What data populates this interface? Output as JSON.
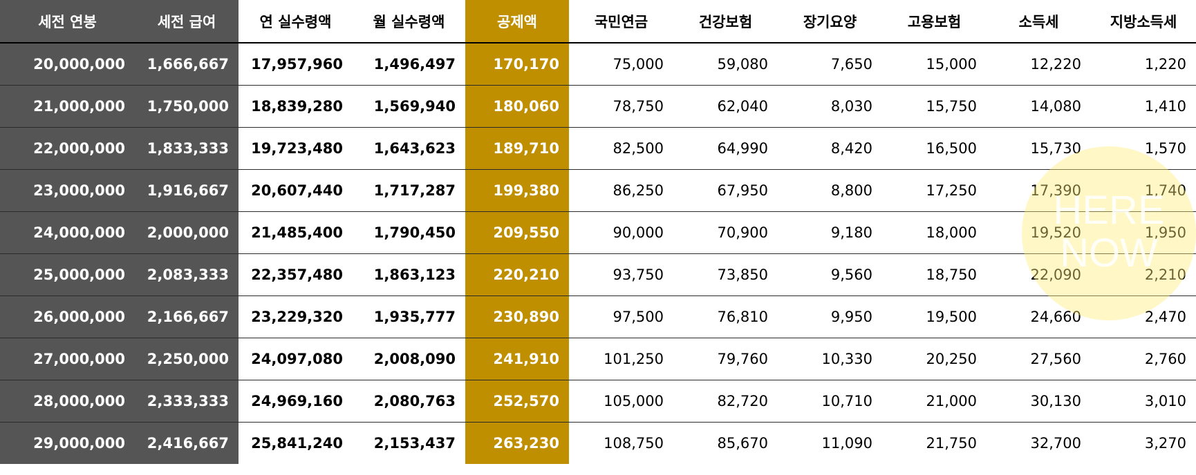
{
  "table": {
    "headers": [
      "세전 연봉",
      "세전 급여",
      "연 실수령액",
      "월 실수령액",
      "공제액",
      "국민연금",
      "건강보험",
      "장기요양",
      "고용보험",
      "소득세",
      "지방소득세"
    ],
    "rows": [
      [
        "20,000,000",
        "1,666,667",
        "17,957,960",
        "1,496,497",
        "170,170",
        "75,000",
        "59,080",
        "7,650",
        "15,000",
        "12,220",
        "1,220"
      ],
      [
        "21,000,000",
        "1,750,000",
        "18,839,280",
        "1,569,940",
        "180,060",
        "78,750",
        "62,040",
        "8,030",
        "15,750",
        "14,080",
        "1,410"
      ],
      [
        "22,000,000",
        "1,833,333",
        "19,723,480",
        "1,643,623",
        "189,710",
        "82,500",
        "64,990",
        "8,420",
        "16,500",
        "15,730",
        "1,570"
      ],
      [
        "23,000,000",
        "1,916,667",
        "20,607,440",
        "1,717,287",
        "199,380",
        "86,250",
        "67,950",
        "8,800",
        "17,250",
        "17,390",
        "1,740"
      ],
      [
        "24,000,000",
        "2,000,000",
        "21,485,400",
        "1,790,450",
        "209,550",
        "90,000",
        "70,900",
        "9,180",
        "18,000",
        "19,520",
        "1,950"
      ],
      [
        "25,000,000",
        "2,083,333",
        "22,357,480",
        "1,863,123",
        "220,210",
        "93,750",
        "73,850",
        "9,560",
        "18,750",
        "22,090",
        "2,210"
      ],
      [
        "26,000,000",
        "2,166,667",
        "23,229,320",
        "1,935,777",
        "230,890",
        "97,500",
        "76,810",
        "9,950",
        "19,500",
        "24,660",
        "2,470"
      ],
      [
        "27,000,000",
        "2,250,000",
        "24,097,080",
        "2,008,090",
        "241,910",
        "101,250",
        "79,760",
        "10,330",
        "20,250",
        "27,560",
        "2,760"
      ],
      [
        "28,000,000",
        "2,333,333",
        "24,969,160",
        "2,080,763",
        "252,570",
        "105,000",
        "82,720",
        "10,710",
        "21,000",
        "30,130",
        "3,010"
      ],
      [
        "29,000,000",
        "2,416,667",
        "25,841,240",
        "2,153,437",
        "263,230",
        "108,750",
        "85,670",
        "11,090",
        "21,750",
        "32,700",
        "3,270"
      ]
    ]
  },
  "watermark": {
    "line1": "HERE",
    "line2": "NOW"
  },
  "colors": {
    "gray_band": "#555555",
    "gold_band": "#bf8f00",
    "watermark_circle": "#ffec78"
  }
}
